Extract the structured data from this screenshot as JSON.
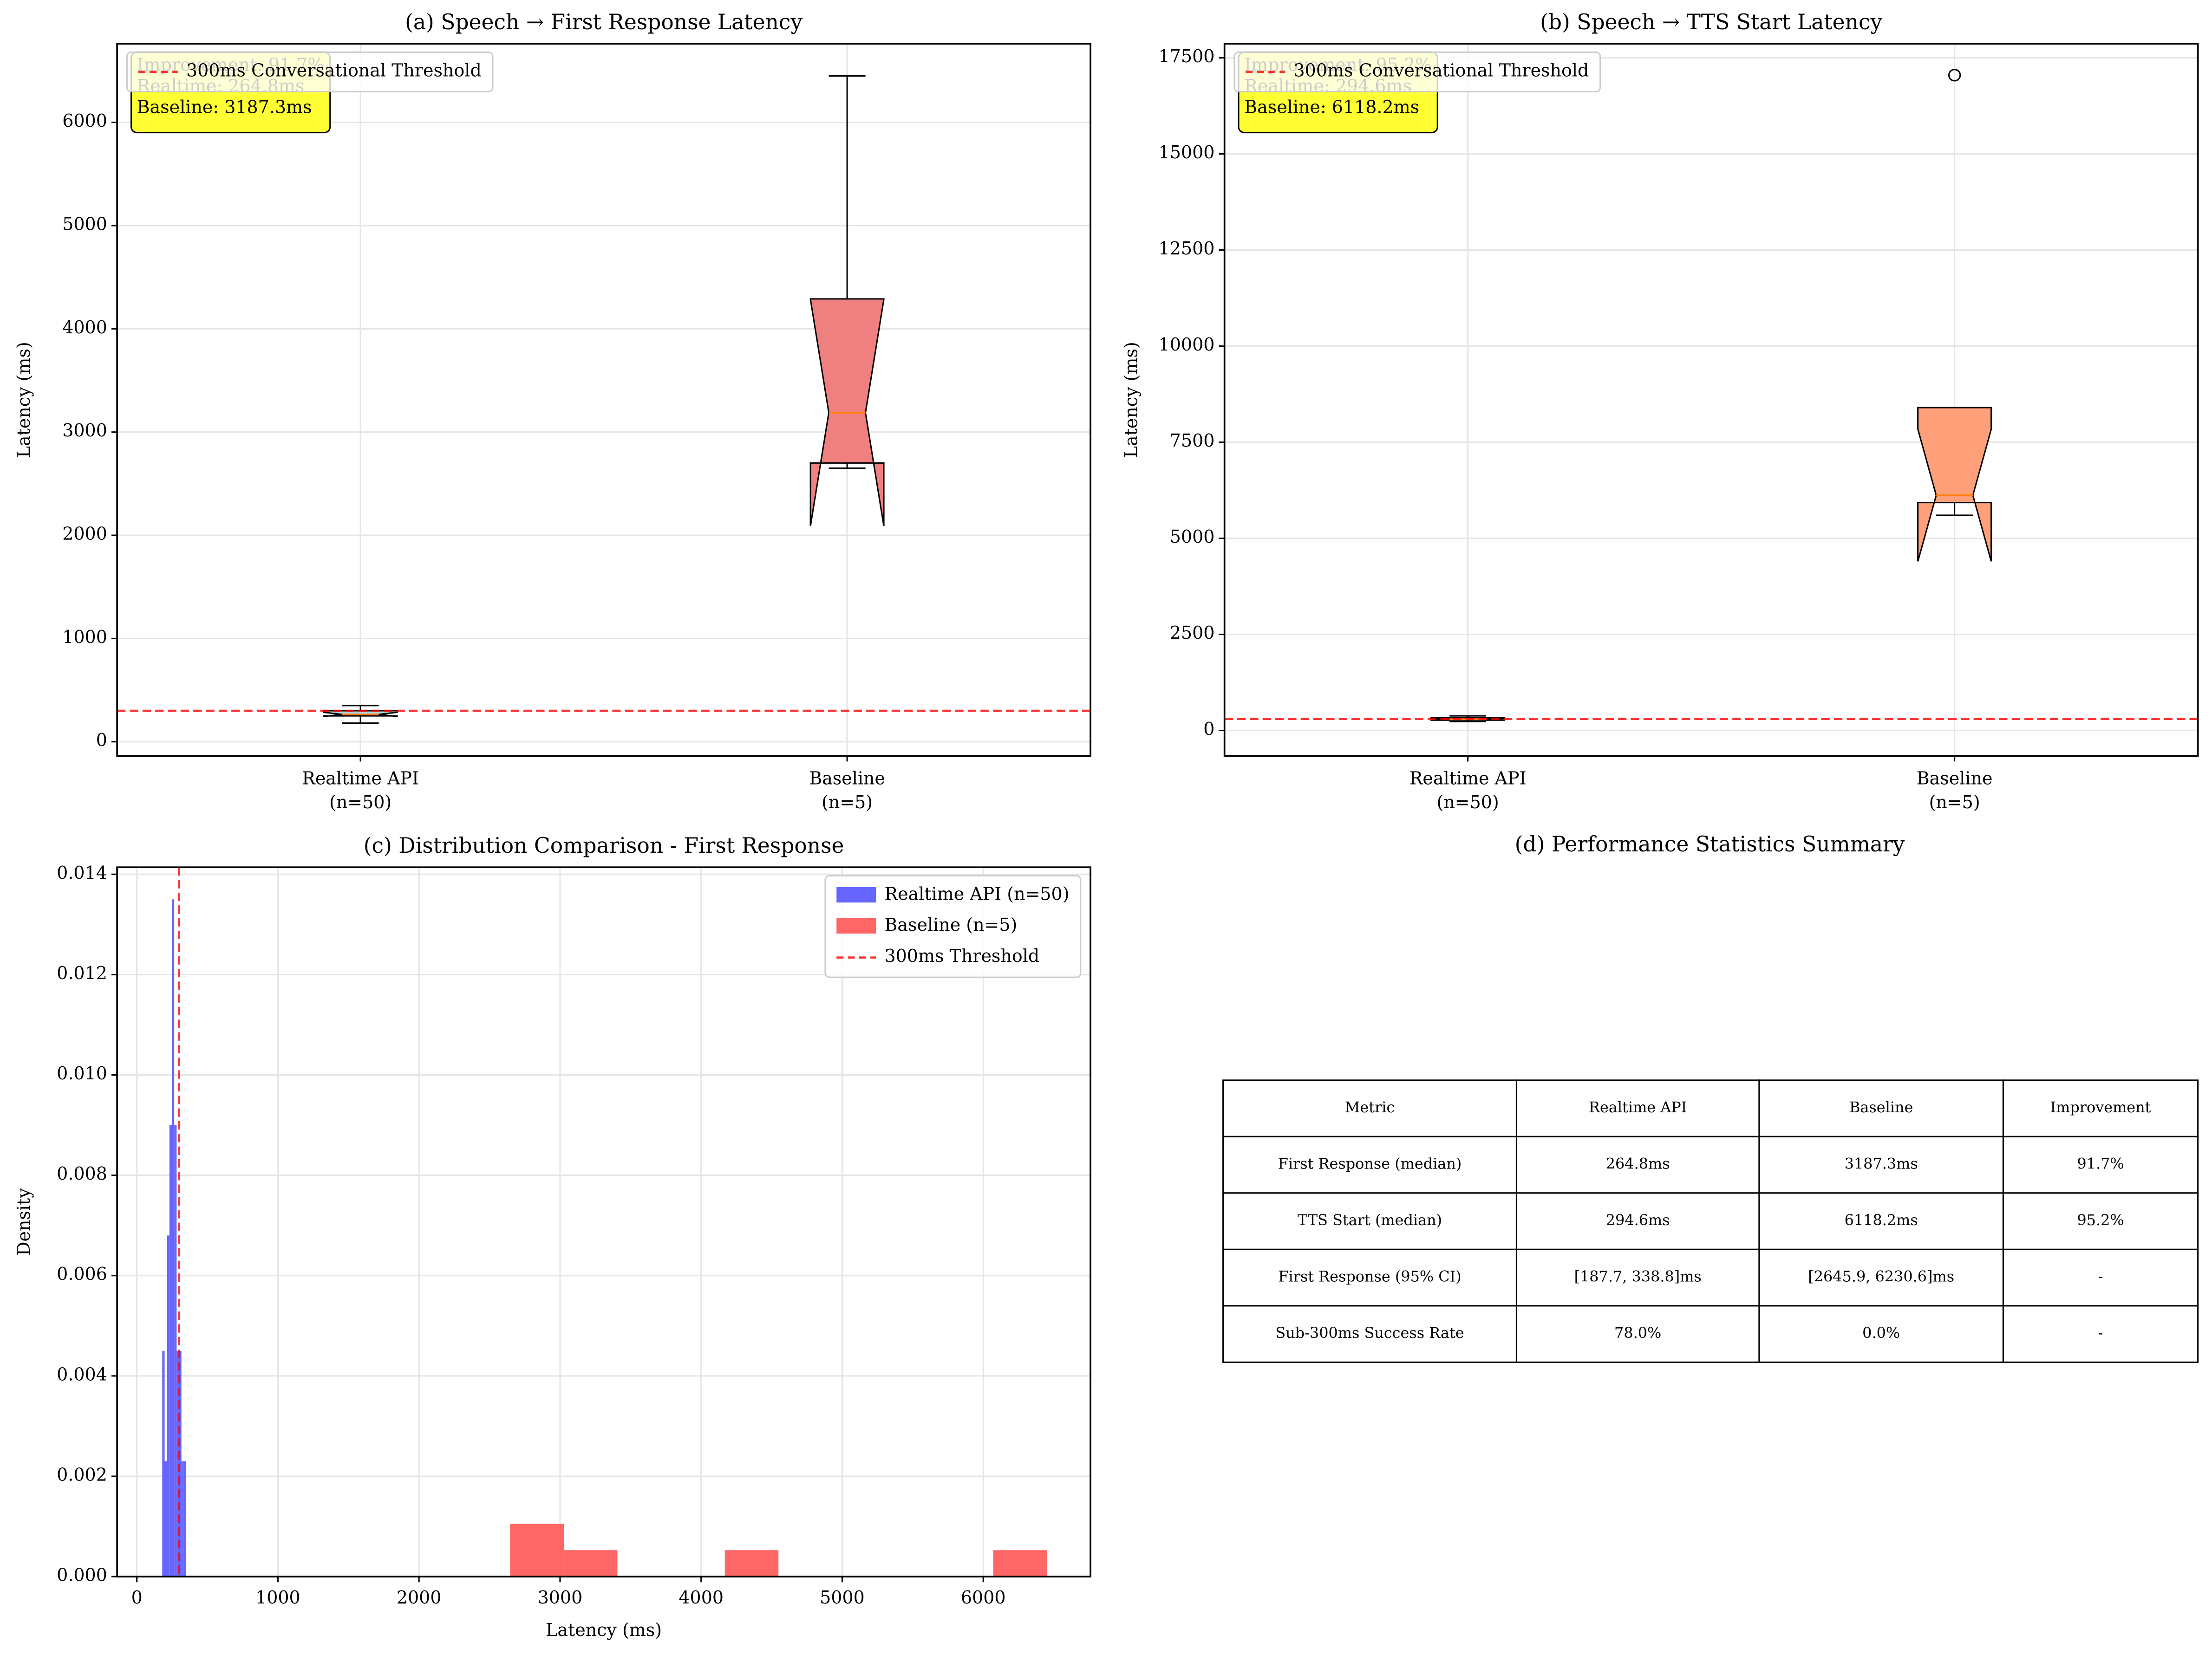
{
  "chart_data": [
    {
      "type": "box",
      "title": "(a) Speech → First Response Latency",
      "ylabel": "Latency (ms)",
      "categories": [
        [
          "Realtime API",
          "(n=50)"
        ],
        [
          "Baseline",
          "(n=5)"
        ]
      ],
      "boxes": [
        {
          "whislo": 180,
          "q1": 250,
          "med": 264.8,
          "q3": 300,
          "whishi": 350,
          "notch_lo": 245,
          "notch_hi": 285,
          "fliers": [],
          "color": "#add8e6"
        },
        {
          "whislo": 2650,
          "q1": 2700,
          "med": 3187.3,
          "q3": 4290,
          "whishi": 6450,
          "notch_lo": 2090,
          "notch_hi": 4285,
          "fliers": [],
          "color": "#f08080"
        }
      ],
      "threshold": {
        "value": 300,
        "label": "300ms Conversational Threshold",
        "color": "#ff0000"
      },
      "annotation": [
        "Improvement: 91.7%",
        "Realtime: 264.8ms",
        "Baseline: 3187.3ms"
      ],
      "ylim": [
        -137,
        6762
      ],
      "yticks": [
        0,
        1000,
        2000,
        3000,
        4000,
        5000,
        6000
      ],
      "grid": true,
      "legend_loc": "upper left"
    },
    {
      "type": "box",
      "title": "(b) Speech → TTS Start Latency",
      "ylabel": "Latency (ms)",
      "categories": [
        [
          "Realtime API",
          "(n=50)"
        ],
        [
          "Baseline",
          "(n=5)"
        ]
      ],
      "boxes": [
        {
          "whislo": 230,
          "q1": 270,
          "med": 294.6,
          "q3": 330,
          "whishi": 380,
          "notch_lo": 275,
          "notch_hi": 315,
          "fliers": [],
          "color": "#add8e6"
        },
        {
          "whislo": 5600,
          "q1": 5930,
          "med": 6118.2,
          "q3": 8400,
          "whishi": 8400,
          "notch_lo": 4400,
          "notch_hi": 7840,
          "fliers": [
            17050
          ],
          "color": "#ffa07a"
        }
      ],
      "threshold": {
        "value": 300,
        "label": "300ms Conversational Threshold",
        "color": "#ff0000"
      },
      "annotation": [
        "Improvement: 95.2%",
        "Realtime: 294.6ms",
        "Baseline: 6118.2ms"
      ],
      "ylim": [
        -660,
        17867
      ],
      "yticks": [
        0,
        2500,
        5000,
        7500,
        10000,
        12500,
        15000,
        17500
      ],
      "grid": true,
      "legend_loc": "upper left"
    },
    {
      "type": "histogram",
      "title": "(c) Distribution Comparison - First Response",
      "xlabel": "Latency (ms)",
      "ylabel": "Density",
      "series": [
        {
          "name": "Realtime API (n=50)",
          "color": "#6666ff",
          "bins": [
            180,
            197,
            214,
            231,
            248,
            265,
            282,
            299,
            316,
            333,
            350
          ],
          "values": [
            0.0045,
            0.0023,
            0.0068,
            0.009,
            0.0135,
            0.009,
            0.0045,
            0.0045,
            0.0023,
            0.0023
          ]
        },
        {
          "name": "Baseline (n=5)",
          "color": "#ff6666",
          "bins": [
            2645.9,
            3026.4,
            3406.8,
            3787.3,
            4167.8,
            4548.3,
            4928.7,
            5309.2,
            5689.7,
            6070.1,
            6450.6
          ],
          "values": [
            0.001051,
            0.000526,
            0,
            0,
            0.000526,
            0,
            0,
            0,
            0,
            0.000526
          ]
        }
      ],
      "threshold": {
        "value": 300,
        "label": "300ms Threshold",
        "color": "#ff0000"
      },
      "xlim": [
        -140,
        6760
      ],
      "xticks": [
        0,
        1000,
        2000,
        3000,
        4000,
        5000,
        6000
      ],
      "ylim": [
        0,
        0.01414
      ],
      "yticks": [
        {
          "value": 0,
          "label": "0.000"
        },
        {
          "value": 0.002,
          "label": "0.002"
        },
        {
          "value": 0.004,
          "label": "0.004"
        },
        {
          "value": 0.006,
          "label": "0.006"
        },
        {
          "value": 0.008,
          "label": "0.008"
        },
        {
          "value": 0.01,
          "label": "0.010"
        },
        {
          "value": 0.012,
          "label": "0.012"
        },
        {
          "value": 0.014,
          "label": "0.014"
        }
      ],
      "grid": true,
      "legend_loc": "upper right"
    }
  ],
  "table_panel": {
    "title": "(d) Performance Statistics Summary",
    "columns": [
      "Metric",
      "Realtime API",
      "Baseline",
      "Improvement"
    ],
    "rows": [
      [
        "First Response (median)",
        "264.8ms",
        "3187.3ms",
        "91.7%"
      ],
      [
        "TTS Start (median)",
        "294.6ms",
        "6118.2ms",
        "95.2%"
      ],
      [
        "First Response (95% CI)",
        "[187.7, 338.8]ms",
        "[2645.9, 6230.6]ms",
        "-"
      ],
      [
        "Sub-300ms Success Rate",
        "78.0%",
        "0.0%",
        "-"
      ]
    ]
  }
}
